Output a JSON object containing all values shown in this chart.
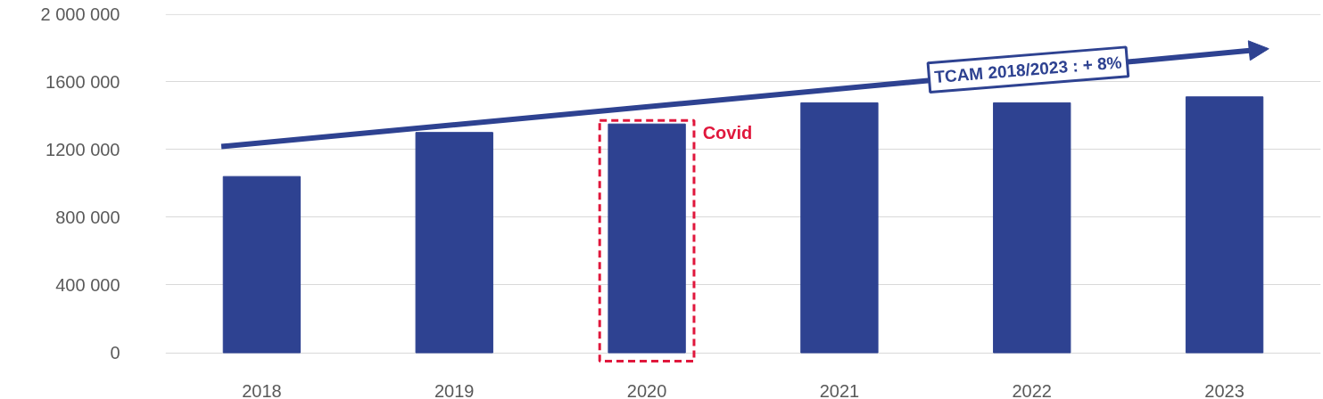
{
  "chart_data": {
    "type": "bar",
    "categories": [
      "2018",
      "2019",
      "2020",
      "2021",
      "2022",
      "2023"
    ],
    "values": [
      1040000,
      1300000,
      1350000,
      1475000,
      1475000,
      1510000
    ],
    "color": "#2e4291",
    "ylim": [
      -60000,
      2000000
    ],
    "yticks": [
      0,
      {
        "value": 400000,
        "label": "400 000"
      },
      {
        "value": 800000,
        "label": "800 000"
      },
      {
        "value": 1200000,
        "label": "1200 000"
      },
      {
        "value": 1600000,
        "label": "1600 000"
      },
      {
        "value": 2000000,
        "label": "2 000 000"
      }
    ],
    "grid": "y",
    "annotations": [
      "TCAM 2018/2023 : + 8%",
      "Covid"
    ]
  }
}
